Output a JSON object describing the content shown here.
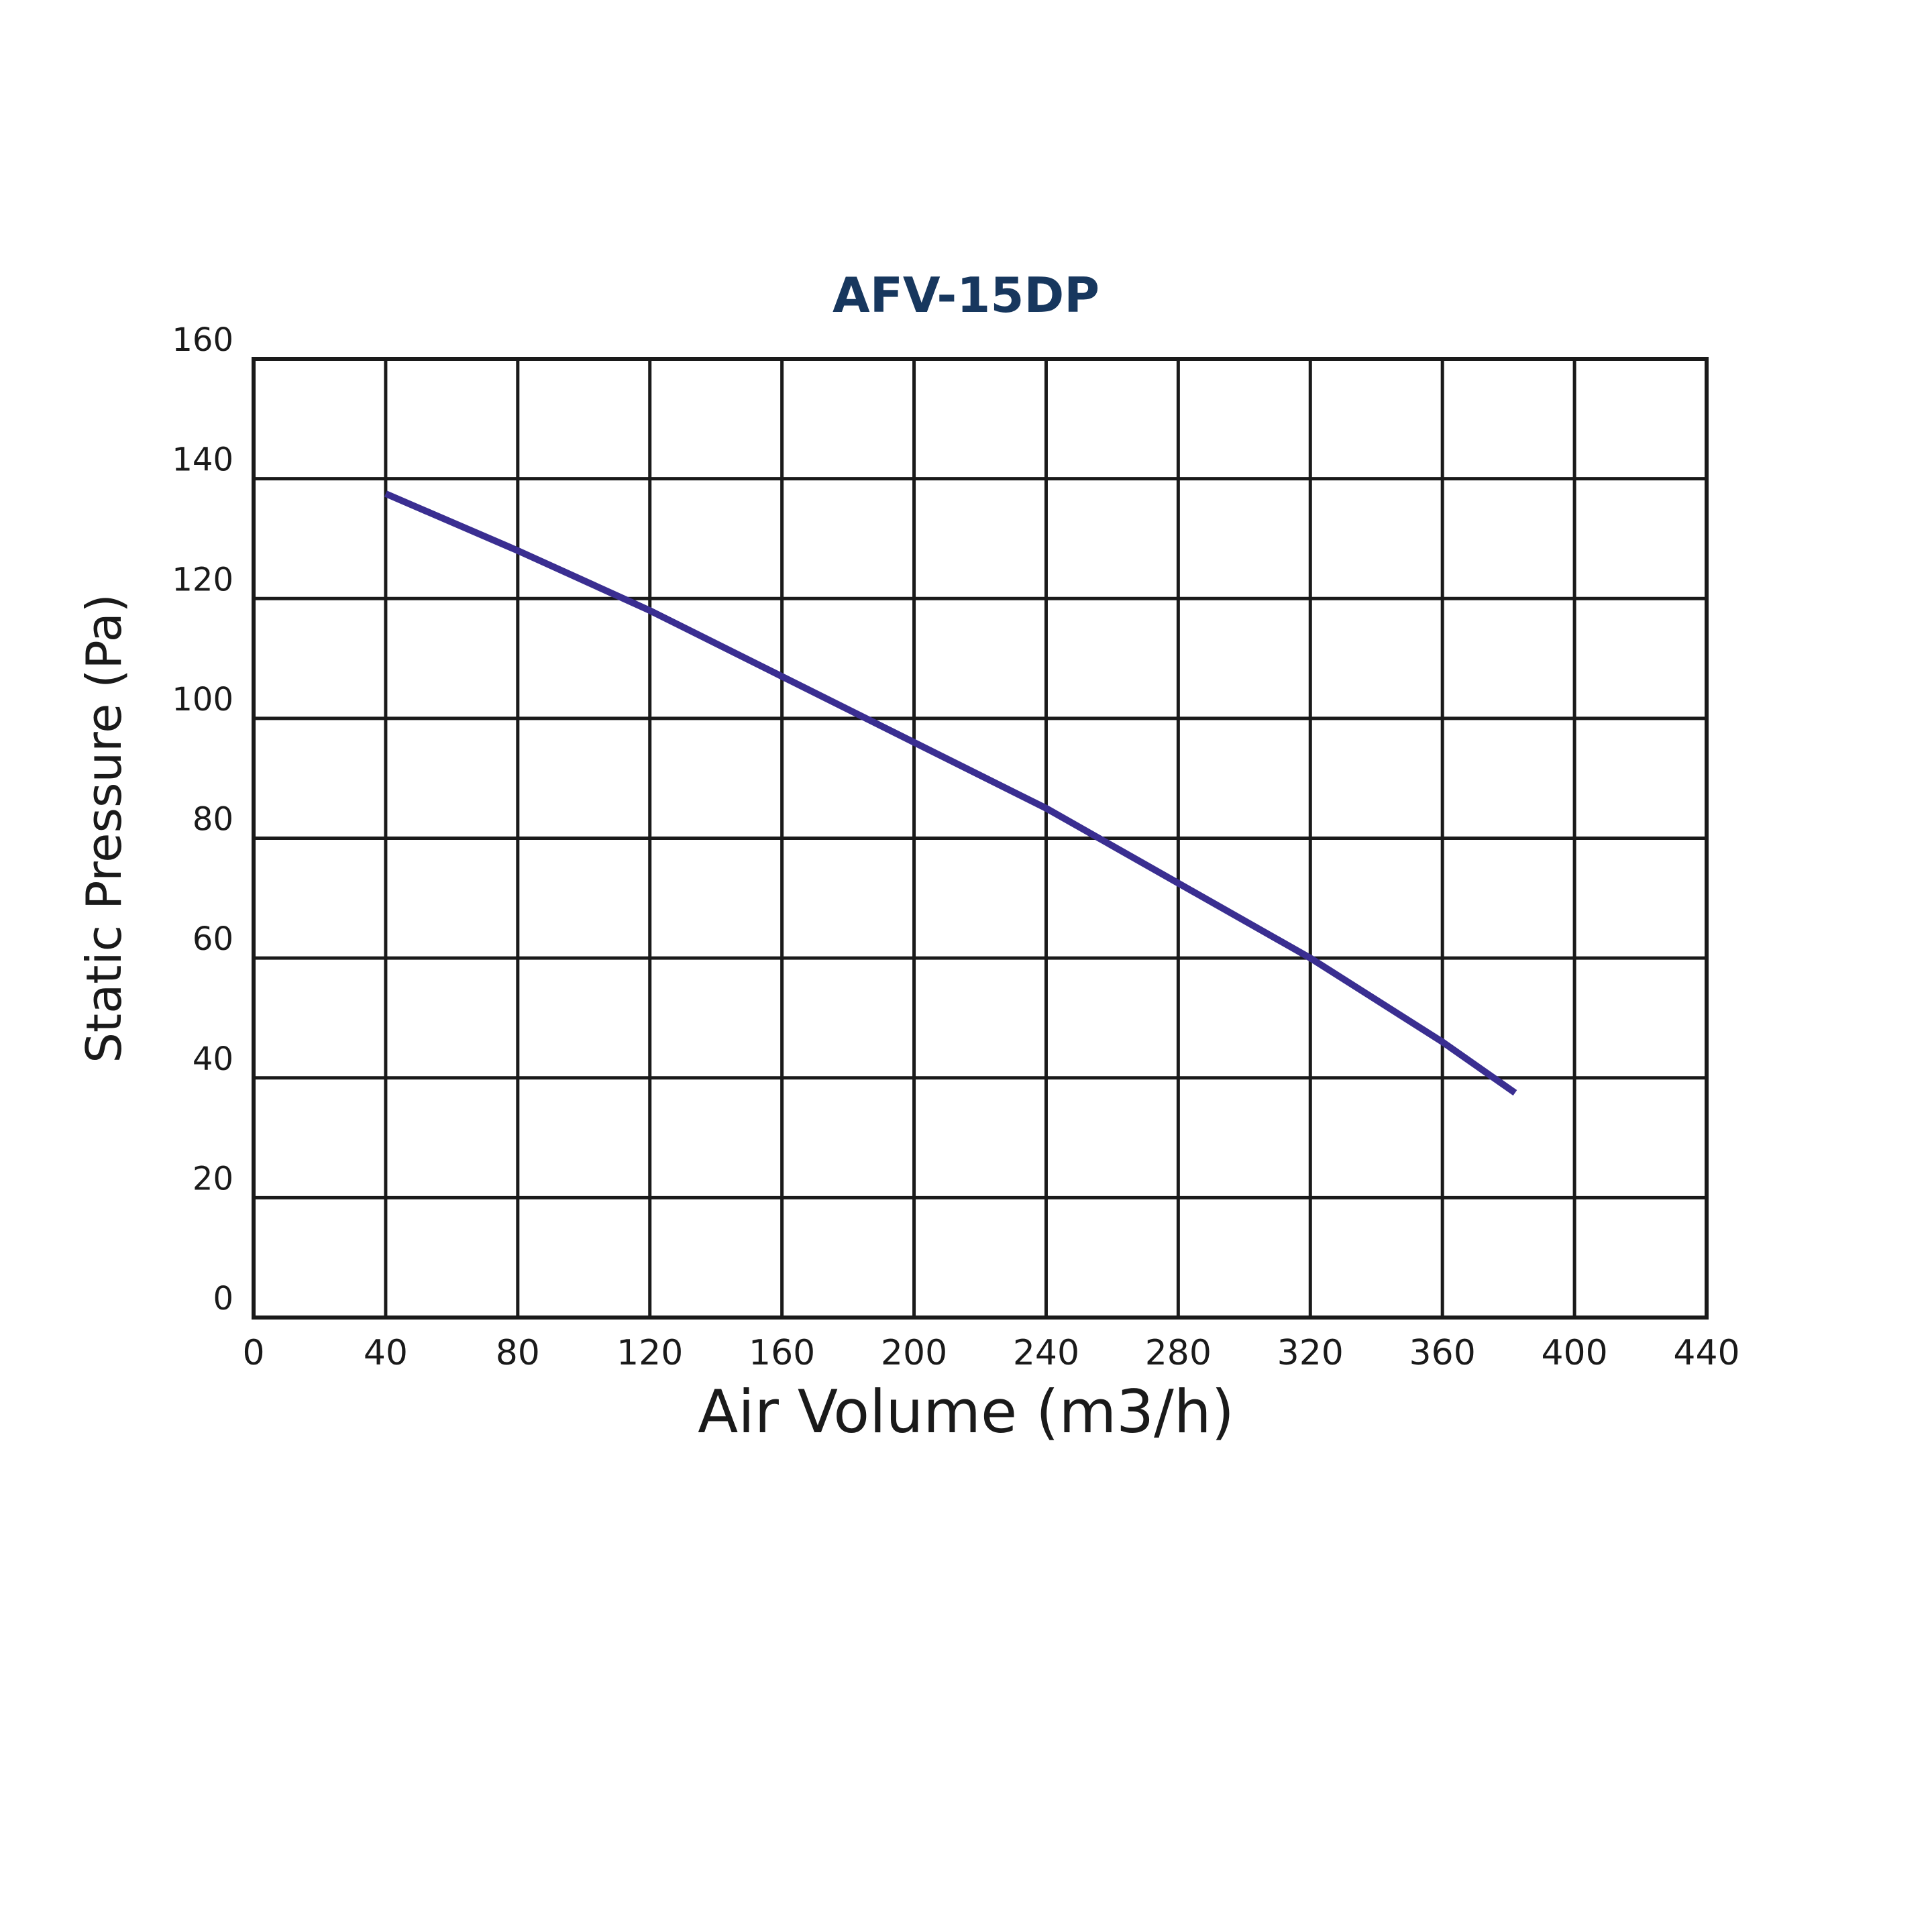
{
  "chart_data": {
    "type": "line",
    "title": "AFV-15DP",
    "x_label": "Air Volume (m3/h)",
    "y_label": "Static Pressure (Pa)",
    "x": [
      40,
      80,
      120,
      160,
      200,
      240,
      280,
      320,
      360,
      382
    ],
    "series": [
      {
        "name": "AFV-15DP",
        "color": "#3a2e91",
        "values": [
          137.5,
          128,
          118,
          107,
          96,
          85,
          72.5,
          60,
          46,
          37.5
        ]
      }
    ],
    "xlim": [
      0,
      440
    ],
    "xticks": [
      0,
      40,
      80,
      120,
      160,
      200,
      240,
      280,
      320,
      360,
      400,
      440
    ],
    "ylim": [
      0,
      160
    ],
    "yticks": [
      0,
      20,
      40,
      60,
      80,
      100,
      120,
      140,
      160
    ],
    "grid": true
  }
}
